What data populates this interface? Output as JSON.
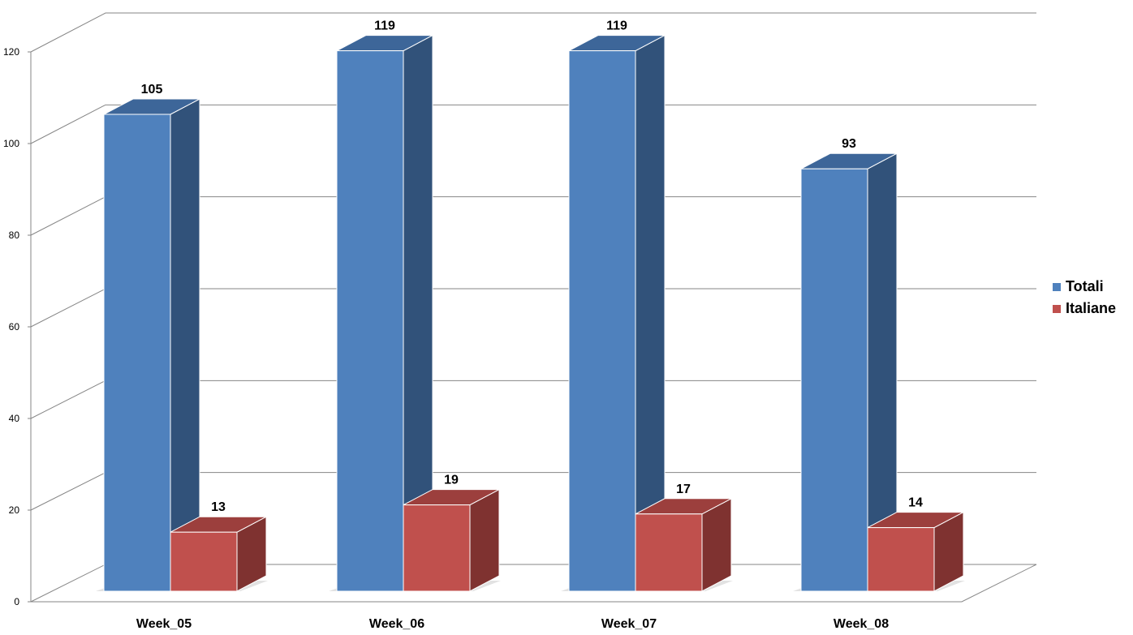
{
  "chart_data": {
    "type": "bar",
    "categories": [
      "Week_05",
      "Week_06",
      "Week_07",
      "Week_08"
    ],
    "series": [
      {
        "name": "Totali",
        "values": [
          105,
          119,
          119,
          93
        ],
        "color": "#4F81BD",
        "side_color": "#31527A",
        "top_color": "#3D6699"
      },
      {
        "name": "Italiane",
        "values": [
          13,
          19,
          17,
          14
        ],
        "color": "#C0504D",
        "side_color": "#7F3230",
        "top_color": "#9C3F3D"
      }
    ],
    "y_ticks": [
      "0",
      "20",
      "40",
      "60",
      "80",
      "100",
      "120"
    ],
    "ylim": [
      0,
      120
    ],
    "grid": true,
    "legend_position": "right",
    "projection": "3d-clustered-column"
  }
}
